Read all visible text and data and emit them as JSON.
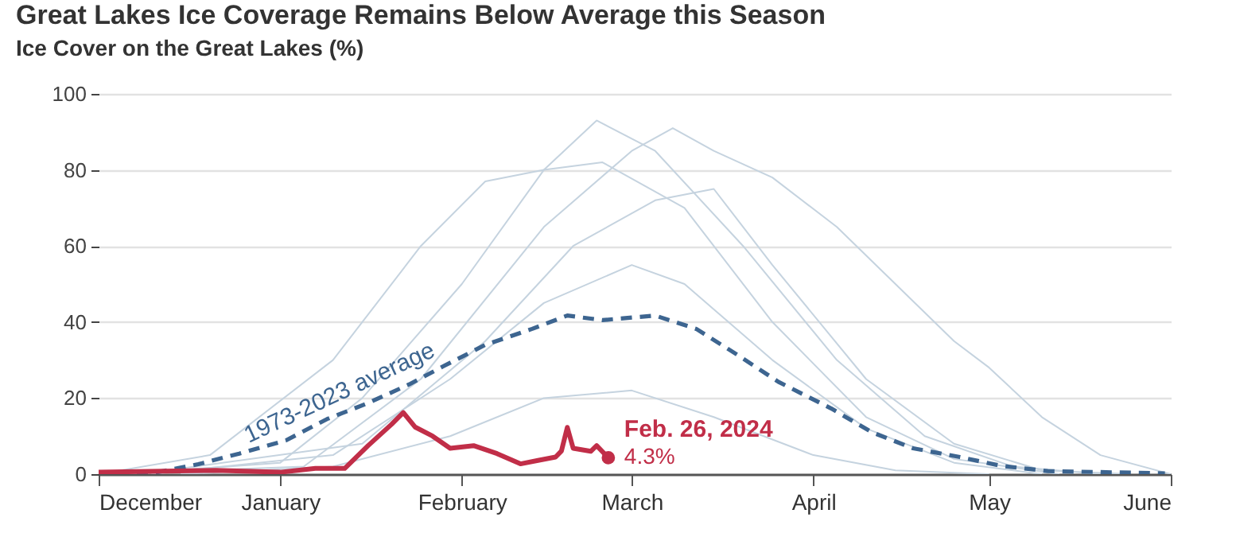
{
  "chart_data": {
    "type": "line",
    "title": "Great Lakes Ice Coverage Remains Below Average this Season",
    "subtitle": "Ice Cover on the Great Lakes (%)",
    "xlim": [
      "2023-12-01",
      "2024-06-01"
    ],
    "xticks": [
      {
        "value": "2023-12-01",
        "label": "December"
      },
      {
        "value": "2024-01-01",
        "label": "January"
      },
      {
        "value": "2024-02-01",
        "label": "February"
      },
      {
        "value": "2024-03-01",
        "label": "March"
      },
      {
        "value": "2024-04-01",
        "label": "April"
      },
      {
        "value": "2024-05-01",
        "label": "May"
      },
      {
        "value": "2024-06-01",
        "label": "June"
      }
    ],
    "ylim": [
      0,
      100
    ],
    "yticks": [
      0,
      20,
      40,
      60,
      80,
      100
    ],
    "grid": "y",
    "series": [
      {
        "color": "#c5d3df",
        "line_style": "solid",
        "x": [
          "2023-12-05",
          "2024-01-01",
          "2024-01-15",
          "2024-02-01",
          "2024-02-15",
          "2024-02-24",
          "2024-03-05",
          "2024-03-20",
          "2024-04-05",
          "2024-04-20",
          "2024-05-05",
          "2024-05-20"
        ],
        "values": [
          0,
          3,
          20,
          50,
          80,
          93,
          85,
          60,
          30,
          10,
          2,
          0
        ]
      },
      {
        "color": "#c5d3df",
        "line_style": "solid",
        "x": [
          "2023-12-01",
          "2024-01-05",
          "2024-01-25",
          "2024-02-15",
          "2024-03-01",
          "2024-03-08",
          "2024-03-15",
          "2024-03-25",
          "2024-04-05",
          "2024-04-15",
          "2024-04-25",
          "2024-05-01",
          "2024-05-10",
          "2024-05-20",
          "2024-06-01"
        ],
        "values": [
          0,
          2,
          25,
          65,
          85,
          91,
          85,
          78,
          65,
          50,
          35,
          28,
          15,
          5,
          0
        ]
      },
      {
        "color": "#c5d3df",
        "line_style": "solid",
        "x": [
          "2023-12-01",
          "2023-12-20",
          "2024-01-10",
          "2024-01-25",
          "2024-02-05",
          "2024-02-15",
          "2024-02-25",
          "2024-03-10",
          "2024-03-25",
          "2024-04-10",
          "2024-04-25",
          "2024-05-13"
        ],
        "values": [
          0,
          5,
          30,
          60,
          77,
          80,
          82,
          70,
          40,
          15,
          4,
          0
        ]
      },
      {
        "color": "#c5d3df",
        "line_style": "solid",
        "x": [
          "2023-12-10",
          "2024-01-10",
          "2024-01-30",
          "2024-02-15",
          "2024-03-01",
          "2024-03-10",
          "2024-03-25",
          "2024-04-10",
          "2024-04-25",
          "2024-05-10"
        ],
        "values": [
          0,
          5,
          25,
          45,
          55,
          50,
          30,
          12,
          3,
          0
        ]
      },
      {
        "color": "#c5d3df",
        "line_style": "solid",
        "x": [
          "2023-12-15",
          "2024-01-10",
          "2024-01-30",
          "2024-02-15",
          "2024-03-01",
          "2024-03-15",
          "2024-04-01",
          "2024-04-15",
          "2024-05-01"
        ],
        "values": [
          0,
          2,
          10,
          20,
          22,
          15,
          5,
          1,
          0
        ]
      },
      {
        "color": "#c5d3df",
        "line_style": "solid",
        "x": [
          "2023-12-08",
          "2024-01-15",
          "2024-02-05",
          "2024-02-20",
          "2024-03-05",
          "2024-03-15",
          "2024-03-25",
          "2024-04-10",
          "2024-04-25",
          "2024-05-10",
          "2024-05-25"
        ],
        "values": [
          0,
          8,
          35,
          60,
          72,
          75,
          55,
          25,
          8,
          1,
          0
        ]
      },
      {
        "name": "1973-2023 average",
        "color": "#3d6590",
        "line_style": "dashed",
        "x": [
          "2023-12-01",
          "2023-12-11",
          "2023-12-18",
          "2023-12-25",
          "2024-01-02",
          "2024-01-09",
          "2024-01-16",
          "2024-01-23",
          "2024-01-29",
          "2024-02-05",
          "2024-02-13",
          "2024-02-19",
          "2024-02-25",
          "2024-03-05",
          "2024-03-12",
          "2024-03-19",
          "2024-03-26",
          "2024-04-04",
          "2024-04-11",
          "2024-04-18",
          "2024-04-26",
          "2024-05-03",
          "2024-05-11",
          "2024-05-31"
        ],
        "values": [
          0,
          0.5,
          2.6,
          5.4,
          8.9,
          14.5,
          18.7,
          23.6,
          28.5,
          34,
          38.2,
          41.7,
          40.5,
          41.7,
          38.2,
          31.4,
          24.3,
          17.3,
          11,
          6.8,
          4.5,
          2.2,
          0.8,
          0.2
        ]
      },
      {
        "color": "#c12e48",
        "line_style": "solid",
        "x": [
          "2023-12-01",
          "2023-12-21",
          "2024-01-01",
          "2024-01-07",
          "2024-01-12",
          "2024-01-16",
          "2024-01-20",
          "2024-01-22",
          "2024-01-24",
          "2024-01-27",
          "2024-01-30",
          "2024-02-03",
          "2024-02-07",
          "2024-02-11",
          "2024-02-14",
          "2024-02-17",
          "2024-02-18",
          "2024-02-19",
          "2024-02-20",
          "2024-02-23",
          "2024-02-24",
          "2024-02-26"
        ],
        "values": [
          0.5,
          1,
          0.5,
          1.5,
          1.5,
          7.5,
          13.1,
          16.2,
          12.4,
          10,
          6.8,
          7.5,
          5.4,
          2.7,
          3.6,
          4.5,
          6.1,
          12.3,
          6.8,
          6,
          7.5,
          4.3
        ]
      }
    ],
    "annotations": [
      {
        "text": "Feb. 26, 2024",
        "x": "2024-02-26",
        "y": 4.3
      },
      {
        "text": "4.3%",
        "x": "2024-02-26",
        "y": 4.3
      }
    ]
  }
}
